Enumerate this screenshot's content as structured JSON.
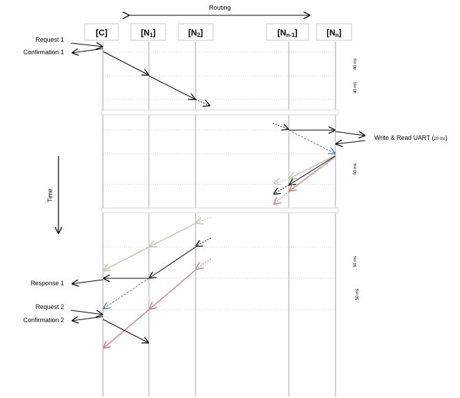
{
  "routing_label": "Routing",
  "time_label": "Time",
  "nodes": [
    {
      "base": "[C]",
      "sub": "",
      "tail": ""
    },
    {
      "base": "[N",
      "sub": "1",
      "tail": "]"
    },
    {
      "base": "[N",
      "sub": "2",
      "tail": "]"
    },
    {
      "base": "[N",
      "sub": "n-1",
      "tail": "]"
    },
    {
      "base": "[N",
      "sub": "n",
      "tail": "]"
    }
  ],
  "left_labels": {
    "request_1": "Request 1",
    "confirmation_1": "Confirmation 1",
    "response_1": "Response 1",
    "request_2": "Request 2",
    "confirmation_2": "Confirmation 2"
  },
  "uart_label": {
    "main": "Write & Read UART (",
    "value": "20 ms",
    "close": ")"
  },
  "duration_labels": [
    "40 ms",
    "40 ms",
    "50 ms",
    "50 ms",
    "50 ms"
  ],
  "colors": {
    "black": "#000000",
    "green": "#c3cdb1",
    "blue": "#3a7f99",
    "red": "#cc8f90",
    "lifeline": "#a6a6a6",
    "gridline": "#d0d0d0",
    "box_border": "#c8c8c8"
  }
}
